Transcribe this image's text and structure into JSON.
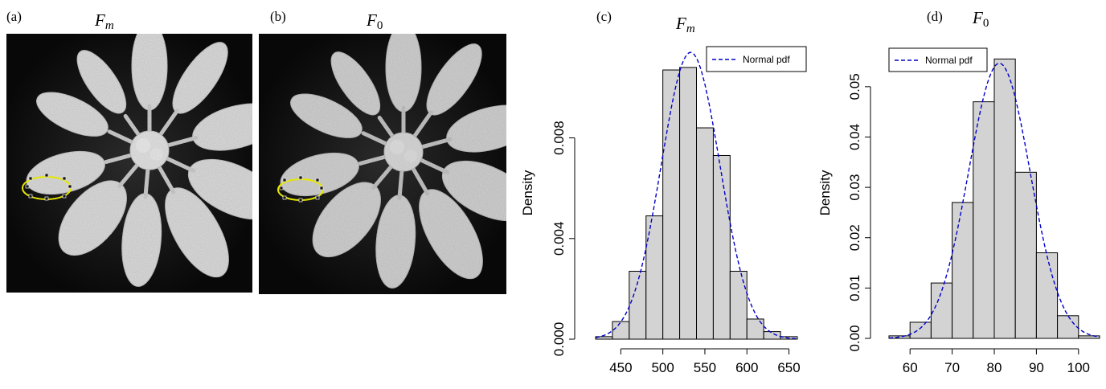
{
  "panels": {
    "a": {
      "letter": "(a)",
      "title_base": "F",
      "title_sub": "m"
    },
    "b": {
      "letter": "(b)",
      "title_base": "F",
      "title_sub": "0"
    }
  },
  "chart_data": [
    {
      "type": "bar",
      "panel_letter": "(c)",
      "title_base": "F",
      "title_sub": "m",
      "ylabel": "Density",
      "legend": {
        "label": "Normal pdf",
        "placement": "top-right",
        "color": "#0000cc"
      },
      "bin_edges": [
        420,
        440,
        460,
        480,
        500,
        520,
        540,
        560,
        580,
        600,
        620,
        640,
        660
      ],
      "values": [
        0.0001,
        0.0007,
        0.0027,
        0.0049,
        0.0107,
        0.0108,
        0.0084,
        0.0073,
        0.0027,
        0.0008,
        0.0003,
        0.0001
      ],
      "xlim": [
        420,
        660
      ],
      "ylim": [
        0,
        0.0115
      ],
      "xticks": [
        450,
        500,
        550,
        600,
        650
      ],
      "yticks": [
        0,
        0.004,
        0.008
      ],
      "ytick_labels": [
        "0.000",
        "0.004",
        "0.008"
      ],
      "normal_pdf": {
        "mean": 533,
        "sd": 35
      }
    },
    {
      "type": "bar",
      "panel_letter": "(d)",
      "title_base": "F",
      "title_sub": "0",
      "ylabel": "Density",
      "legend": {
        "label": "Normal pdf",
        "placement": "top-left",
        "color": "#0000cc"
      },
      "bin_edges": [
        55,
        60,
        65,
        70,
        75,
        80,
        85,
        90,
        95,
        100,
        105
      ],
      "values": [
        0.0005,
        0.0032,
        0.011,
        0.027,
        0.047,
        0.0555,
        0.033,
        0.017,
        0.0045,
        0.0005
      ],
      "xlim": [
        55,
        105
      ],
      "ylim": [
        0,
        0.057
      ],
      "xticks": [
        60,
        70,
        80,
        90,
        100
      ],
      "yticks": [
        0,
        0.01,
        0.02,
        0.03,
        0.04,
        0.05
      ],
      "ytick_labels": [
        "0.00",
        "0.01",
        "0.02",
        "0.03",
        "0.04",
        "0.05"
      ],
      "normal_pdf": {
        "mean": 81.2,
        "sd": 7.3
      }
    }
  ]
}
